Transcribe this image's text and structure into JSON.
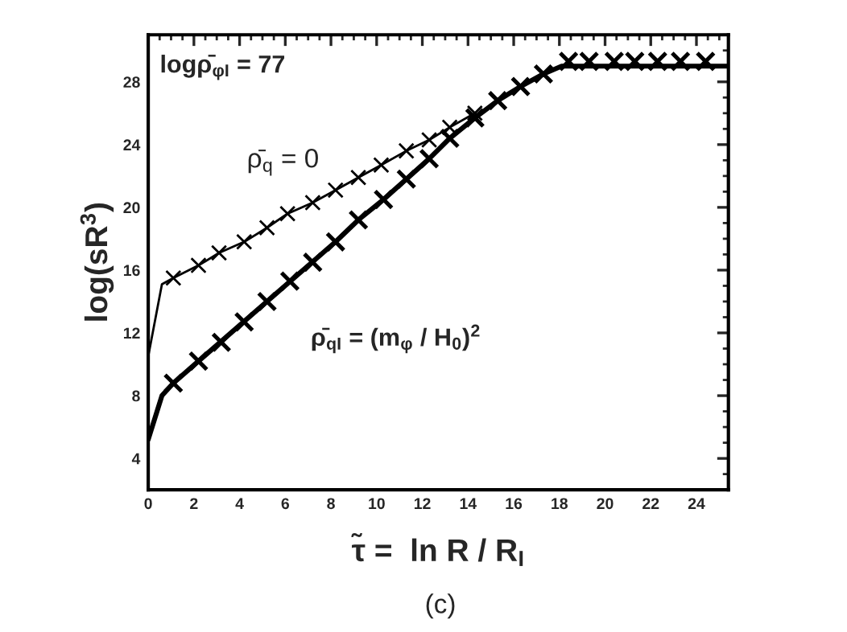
{
  "chart_data": {
    "type": "line",
    "xlabel": "τ̃ =  ln R / R$_{I}$",
    "ylabel": "log(sR$^{3}$)",
    "xlim": [
      0,
      25.4
    ],
    "ylim": [
      2,
      31
    ],
    "xticks": [
      0,
      2,
      4,
      6,
      8,
      10,
      12,
      14,
      16,
      18,
      20,
      22,
      24
    ],
    "yticks": [
      4,
      8,
      12,
      16,
      20,
      24,
      28
    ],
    "grid": false,
    "legend": false,
    "series": [
      {
        "color": "#000000",
        "marker": "none",
        "x": [
          0,
          0.6,
          1.1,
          2.2,
          3.1,
          4.2,
          5.2,
          6.1,
          7.2,
          8.2,
          9.2,
          10.2,
          11.3,
          12.3,
          13.2,
          14.3
        ],
        "values": [
          10.5,
          15.1,
          15.5,
          16.3,
          17.1,
          17.8,
          18.7,
          19.6,
          20.3,
          21.1,
          21.9,
          22.7,
          23.6,
          24.3,
          25.1,
          26.0
        ]
      },
      {
        "type": "scatter",
        "color": "#000000",
        "marker": "cross",
        "x": [
          1.1,
          2.2,
          3.1,
          4.2,
          5.2,
          6.1,
          7.2,
          8.2,
          9.2,
          10.2,
          11.3,
          12.3,
          13.2,
          14.3
        ],
        "values": [
          15.5,
          16.3,
          17.1,
          17.8,
          18.7,
          19.6,
          20.3,
          21.1,
          21.9,
          22.7,
          23.6,
          24.3,
          25.1,
          26.0
        ]
      },
      {
        "color": "#000000",
        "marker": "none",
        "x": [
          0,
          0.6,
          1.1,
          2.2,
          8.2,
          9.2,
          10.3,
          11.3,
          12.3,
          13.2,
          14.3,
          15.3,
          16.3,
          17.3,
          18.1,
          25.4
        ],
        "values": [
          5.2,
          8.0,
          8.8,
          10.2,
          17.8,
          19.2,
          20.5,
          21.8,
          23.1,
          24.4,
          25.7,
          26.8,
          27.7,
          28.5,
          29.0,
          29.0
        ]
      },
      {
        "type": "scatter",
        "color": "#000000",
        "marker": "cross",
        "x": [
          1.1,
          2.2,
          3.2,
          4.2,
          5.2,
          6.2,
          7.2,
          8.2,
          9.2,
          10.3,
          11.3,
          12.3,
          13.2,
          14.3,
          15.3,
          16.3,
          17.3,
          18.4,
          19.3,
          20.4,
          21.3,
          22.3,
          23.3,
          24.4
        ],
        "values": [
          8.8,
          10.2,
          11.4,
          12.7,
          14.0,
          15.3,
          16.5,
          17.8,
          19.2,
          20.5,
          21.8,
          23.1,
          24.4,
          25.7,
          26.8,
          27.7,
          28.5,
          29.3,
          29.3,
          29.3,
          29.3,
          29.3,
          29.3,
          29.3
        ]
      }
    ],
    "annotations": [
      "logρ̄$_{φI}$ = 77",
      "ρ̄$_{q}$ = 0",
      "ρ̄$_{qI}$ = (m$_{φ}$ / H$_{0}$)$^{2}$",
      "(c)"
    ]
  }
}
